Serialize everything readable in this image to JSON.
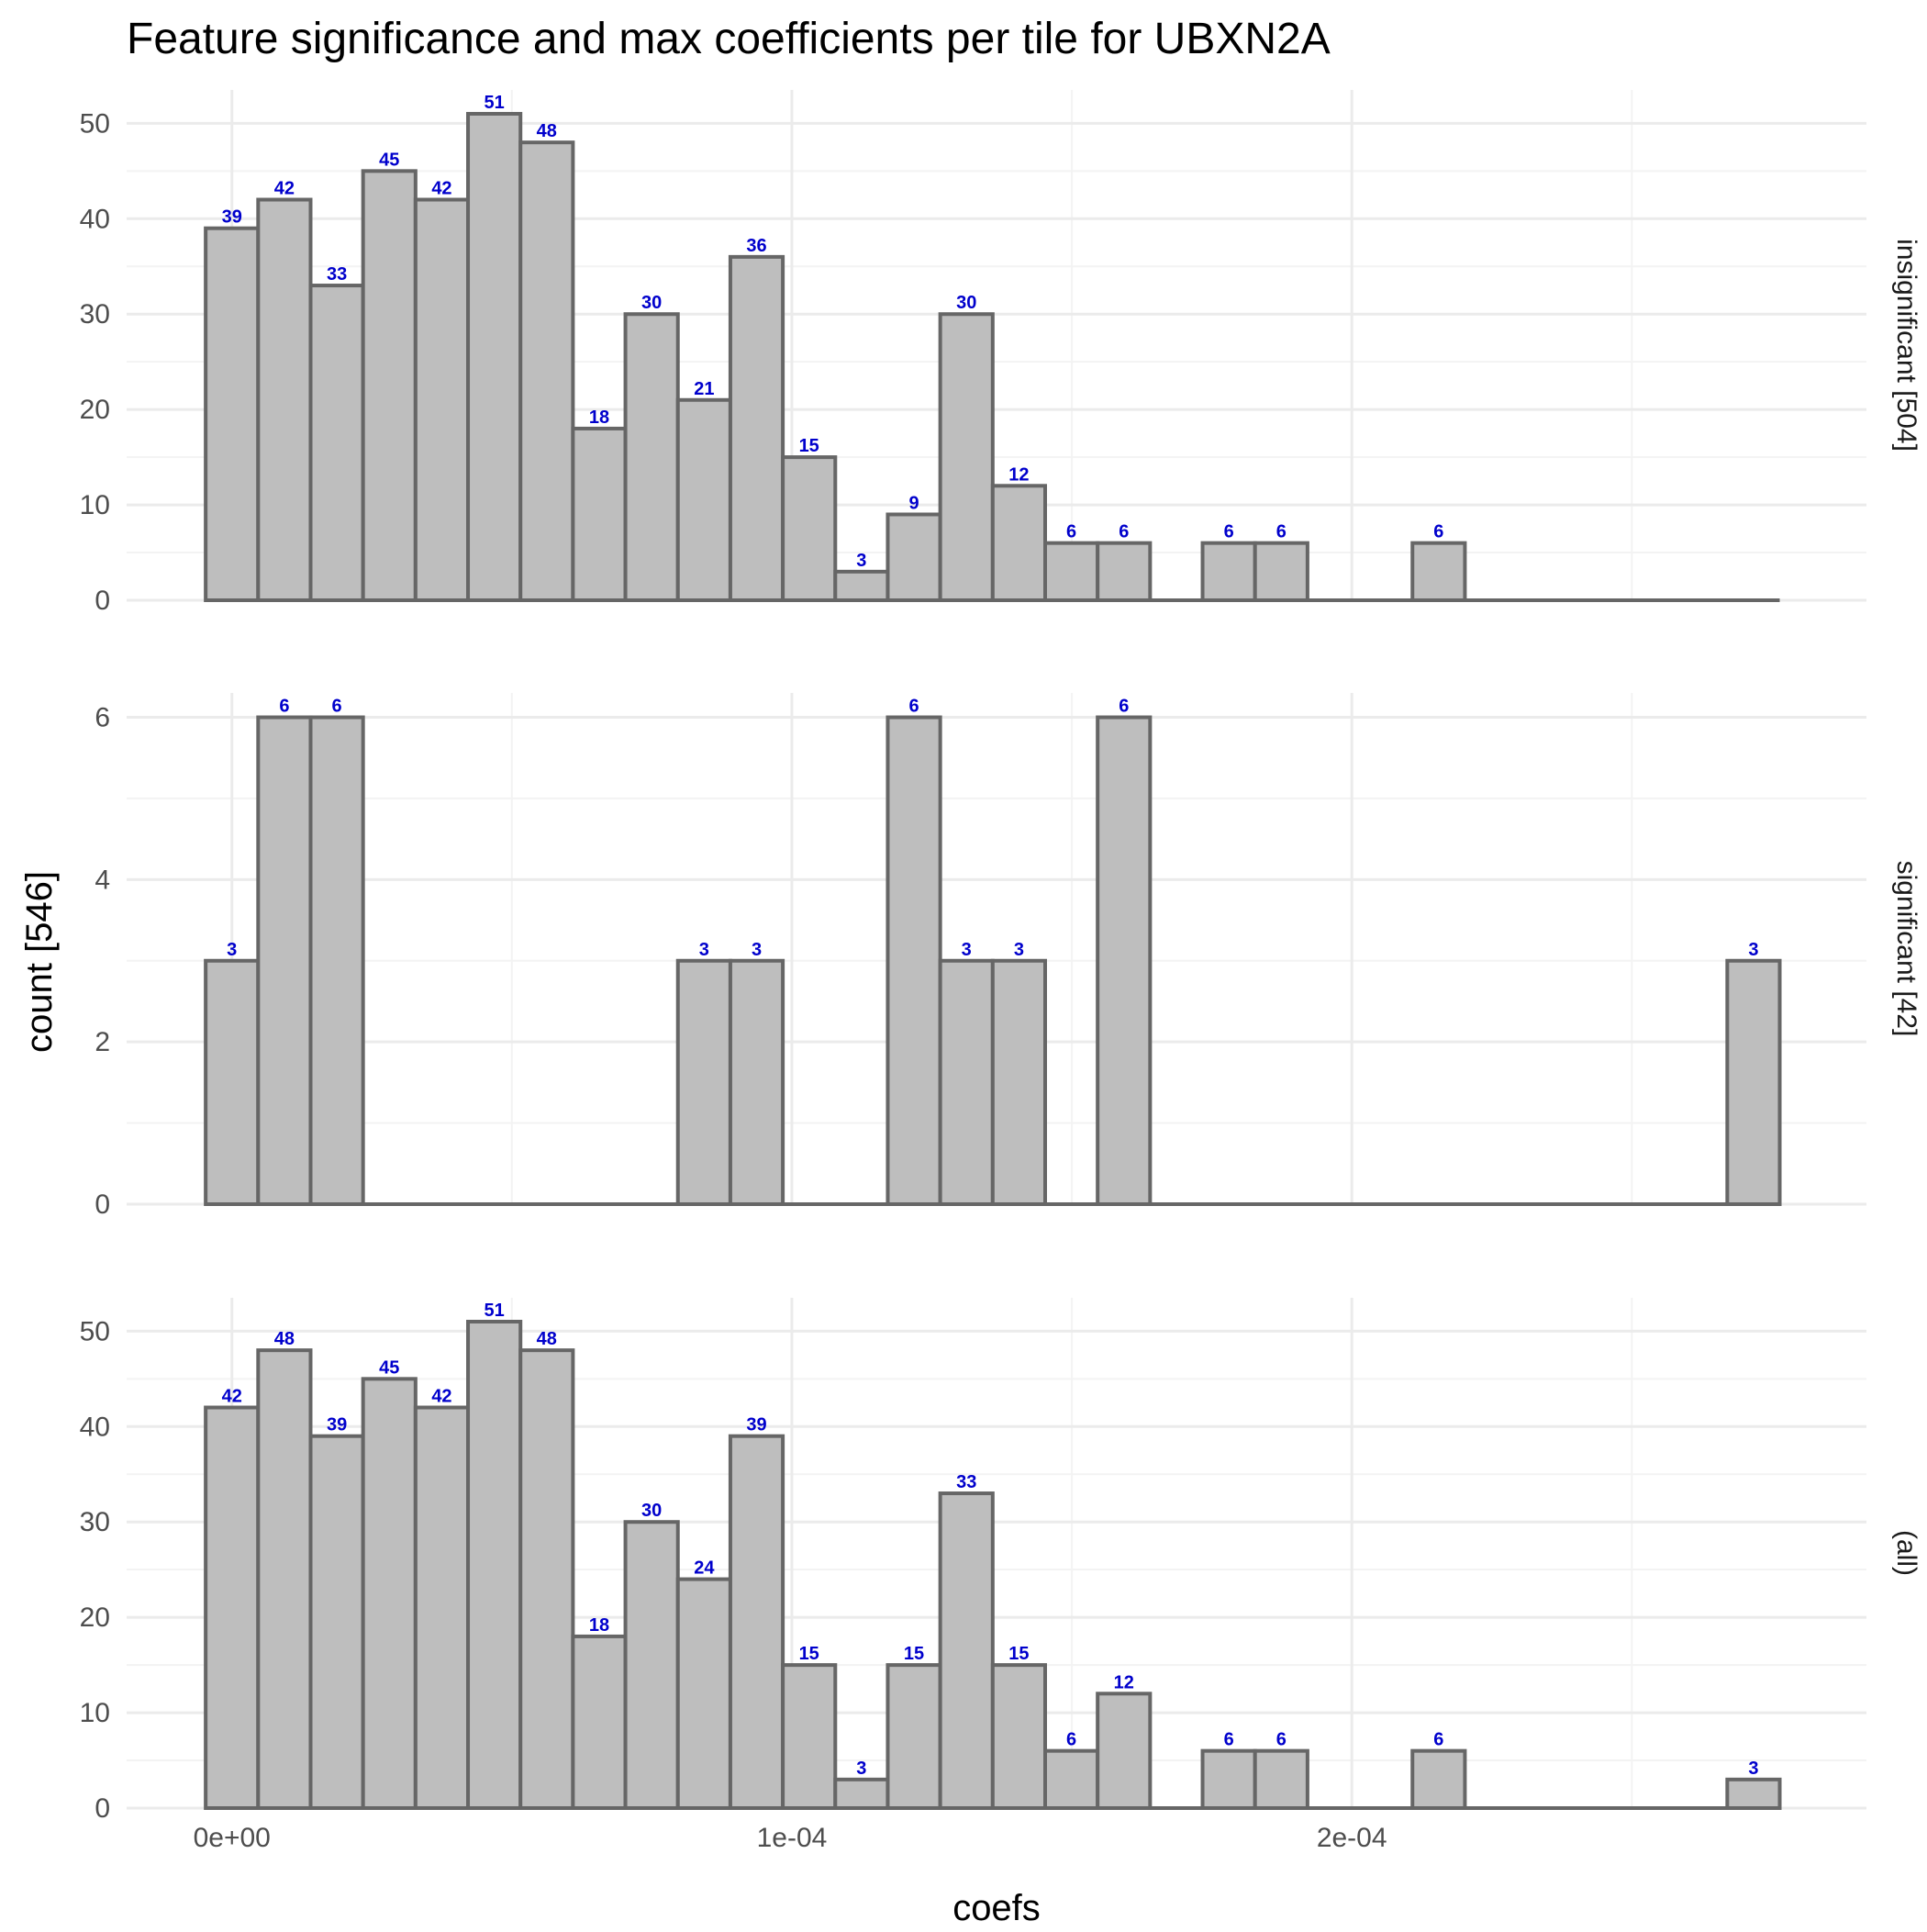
{
  "chart_data": {
    "type": "bar",
    "title": "Feature significance and max coefficients per tile for UBXN2A",
    "xlabel": "coefs",
    "ylabel": "count [546]",
    "x_ticks": [
      {
        "value": 0,
        "label": "0e+00"
      },
      {
        "value": 0.0001,
        "label": "1e-04"
      },
      {
        "value": 0.0002,
        "label": "2e-04"
      }
    ],
    "xlim": [
      -1.88e-05,
      0.0002919
    ],
    "bins": {
      "count": 30,
      "first_center": 0,
      "width": 9.37e-06
    },
    "colors": {
      "bar_fill": "#bebebe",
      "bar_stroke": "#666666",
      "data_label": "#0000cc"
    },
    "grid": true,
    "facets": [
      {
        "strip": "insignificant [504]",
        "ylim": [
          0,
          53.5
        ],
        "y_ticks": [
          0,
          10,
          20,
          30,
          40,
          50
        ],
        "values": [
          39,
          42,
          33,
          45,
          42,
          51,
          48,
          18,
          30,
          21,
          36,
          15,
          3,
          9,
          30,
          12,
          6,
          6,
          0,
          6,
          6,
          0,
          0,
          6,
          0,
          0,
          0,
          0,
          0,
          0
        ]
      },
      {
        "strip": "significant [42]",
        "ylim": [
          0,
          6.3
        ],
        "y_ticks": [
          0,
          2,
          4,
          6
        ],
        "values": [
          3,
          6,
          6,
          0,
          0,
          0,
          0,
          0,
          0,
          3,
          3,
          0,
          0,
          6,
          3,
          3,
          0,
          6,
          0,
          0,
          0,
          0,
          0,
          0,
          0,
          0,
          0,
          0,
          0,
          3
        ]
      },
      {
        "strip": "(all)",
        "ylim": [
          0,
          53.5
        ],
        "y_ticks": [
          0,
          10,
          20,
          30,
          40,
          50
        ],
        "values": [
          42,
          48,
          39,
          45,
          42,
          51,
          48,
          18,
          30,
          24,
          39,
          15,
          3,
          15,
          33,
          15,
          6,
          12,
          0,
          6,
          6,
          0,
          0,
          6,
          0,
          0,
          0,
          0,
          0,
          3
        ]
      }
    ]
  }
}
